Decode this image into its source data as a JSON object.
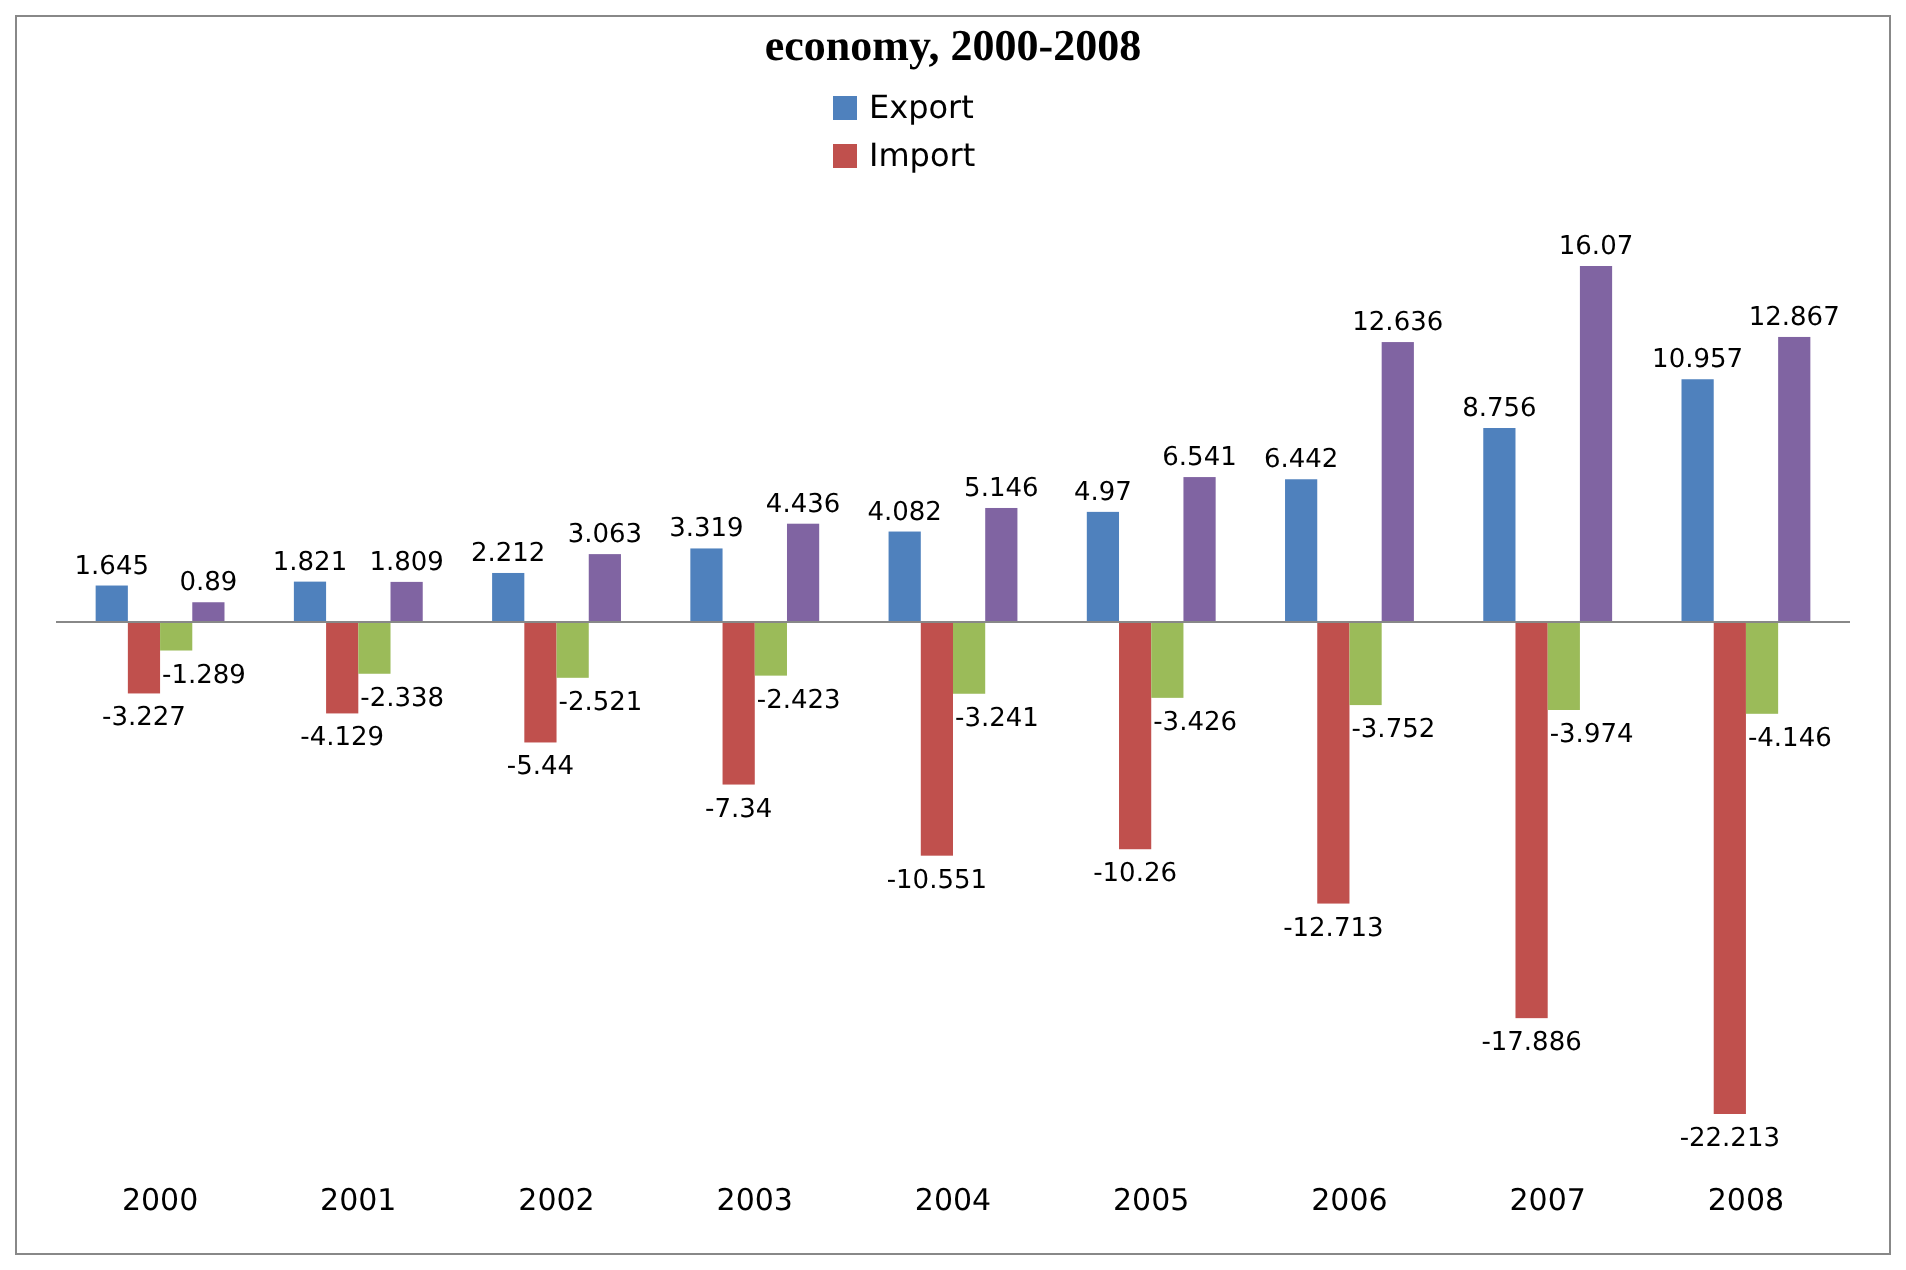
{
  "chart_data": {
    "type": "bar",
    "title": "economy, 2000-2008",
    "categories": [
      "2000",
      "2001",
      "2002",
      "2003",
      "2004",
      "2005",
      "2006",
      "2007",
      "2008"
    ],
    "series": [
      {
        "name": "Export",
        "color": "#4f81bd",
        "values": [
          1.645,
          1.821,
          2.212,
          3.319,
          4.082,
          4.97,
          6.442,
          8.756,
          10.957
        ]
      },
      {
        "name": "Import",
        "color": "#c0504d",
        "values": [
          -3.227,
          -4.129,
          -5.44,
          -7.34,
          -10.551,
          -10.26,
          -12.713,
          -17.886,
          -22.213
        ]
      },
      {
        "color": "#9bbb59",
        "values": [
          -1.289,
          -2.338,
          -2.521,
          -2.423,
          -3.241,
          -3.426,
          -3.752,
          -3.974,
          -4.146
        ]
      },
      {
        "color": "#8064a2",
        "values": [
          0.89,
          1.809,
          3.063,
          4.436,
          5.146,
          6.541,
          12.636,
          16.07,
          12.867
        ]
      }
    ],
    "data_labels": true,
    "legend": "top",
    "grid": false,
    "relative": false
  }
}
